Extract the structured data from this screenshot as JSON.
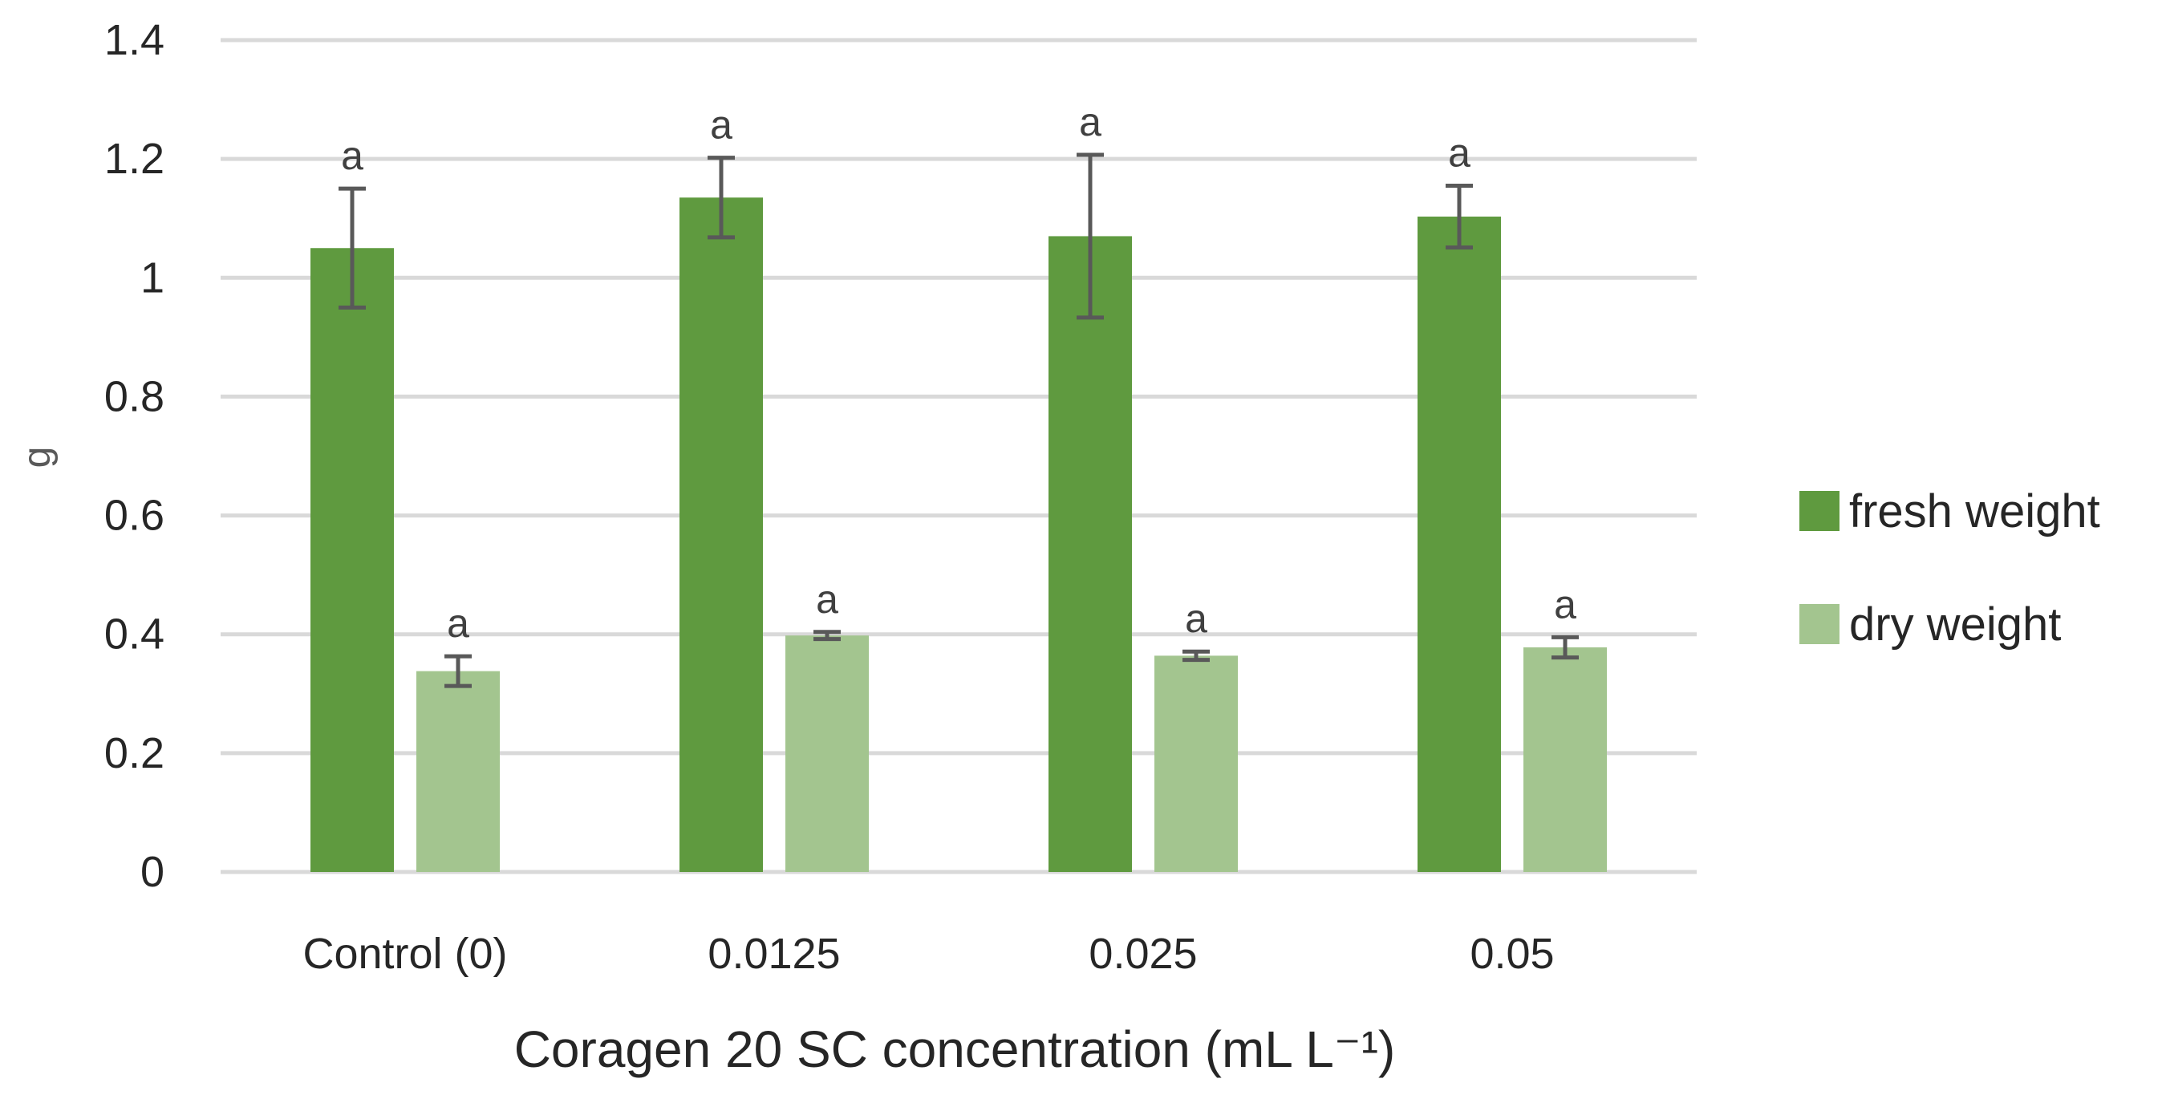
{
  "chart_data": {
    "type": "bar",
    "title": "",
    "xlabel": "Coragen 20 SC concentration (mL L⁻¹)",
    "ylabel": "g",
    "ylim": [
      0,
      1.4
    ],
    "yticks": [
      0,
      0.2,
      0.4,
      0.6,
      0.8,
      1,
      1.2,
      1.4
    ],
    "ytick_labels": [
      "0",
      "0.2",
      "0.4",
      "0.6",
      "0.8",
      "1",
      "1.2",
      "1.4"
    ],
    "grid": true,
    "legend_position": "right",
    "categories": [
      "Control (0)",
      "0.0125",
      "0.025",
      "0.05"
    ],
    "series": [
      {
        "name": "fresh weight",
        "color": "#5f9a3f",
        "values": [
          1.05,
          1.135,
          1.07,
          1.103
        ],
        "errors": [
          0.1,
          0.067,
          0.137,
          0.052
        ],
        "significance": [
          "a",
          "a",
          "a",
          "a"
        ]
      },
      {
        "name": "dry weight",
        "color": "#a3c58f",
        "values": [
          0.338,
          0.398,
          0.364,
          0.378
        ],
        "errors": [
          0.025,
          0.006,
          0.007,
          0.017
        ],
        "significance": [
          "a",
          "a",
          "a",
          "a"
        ]
      }
    ]
  }
}
